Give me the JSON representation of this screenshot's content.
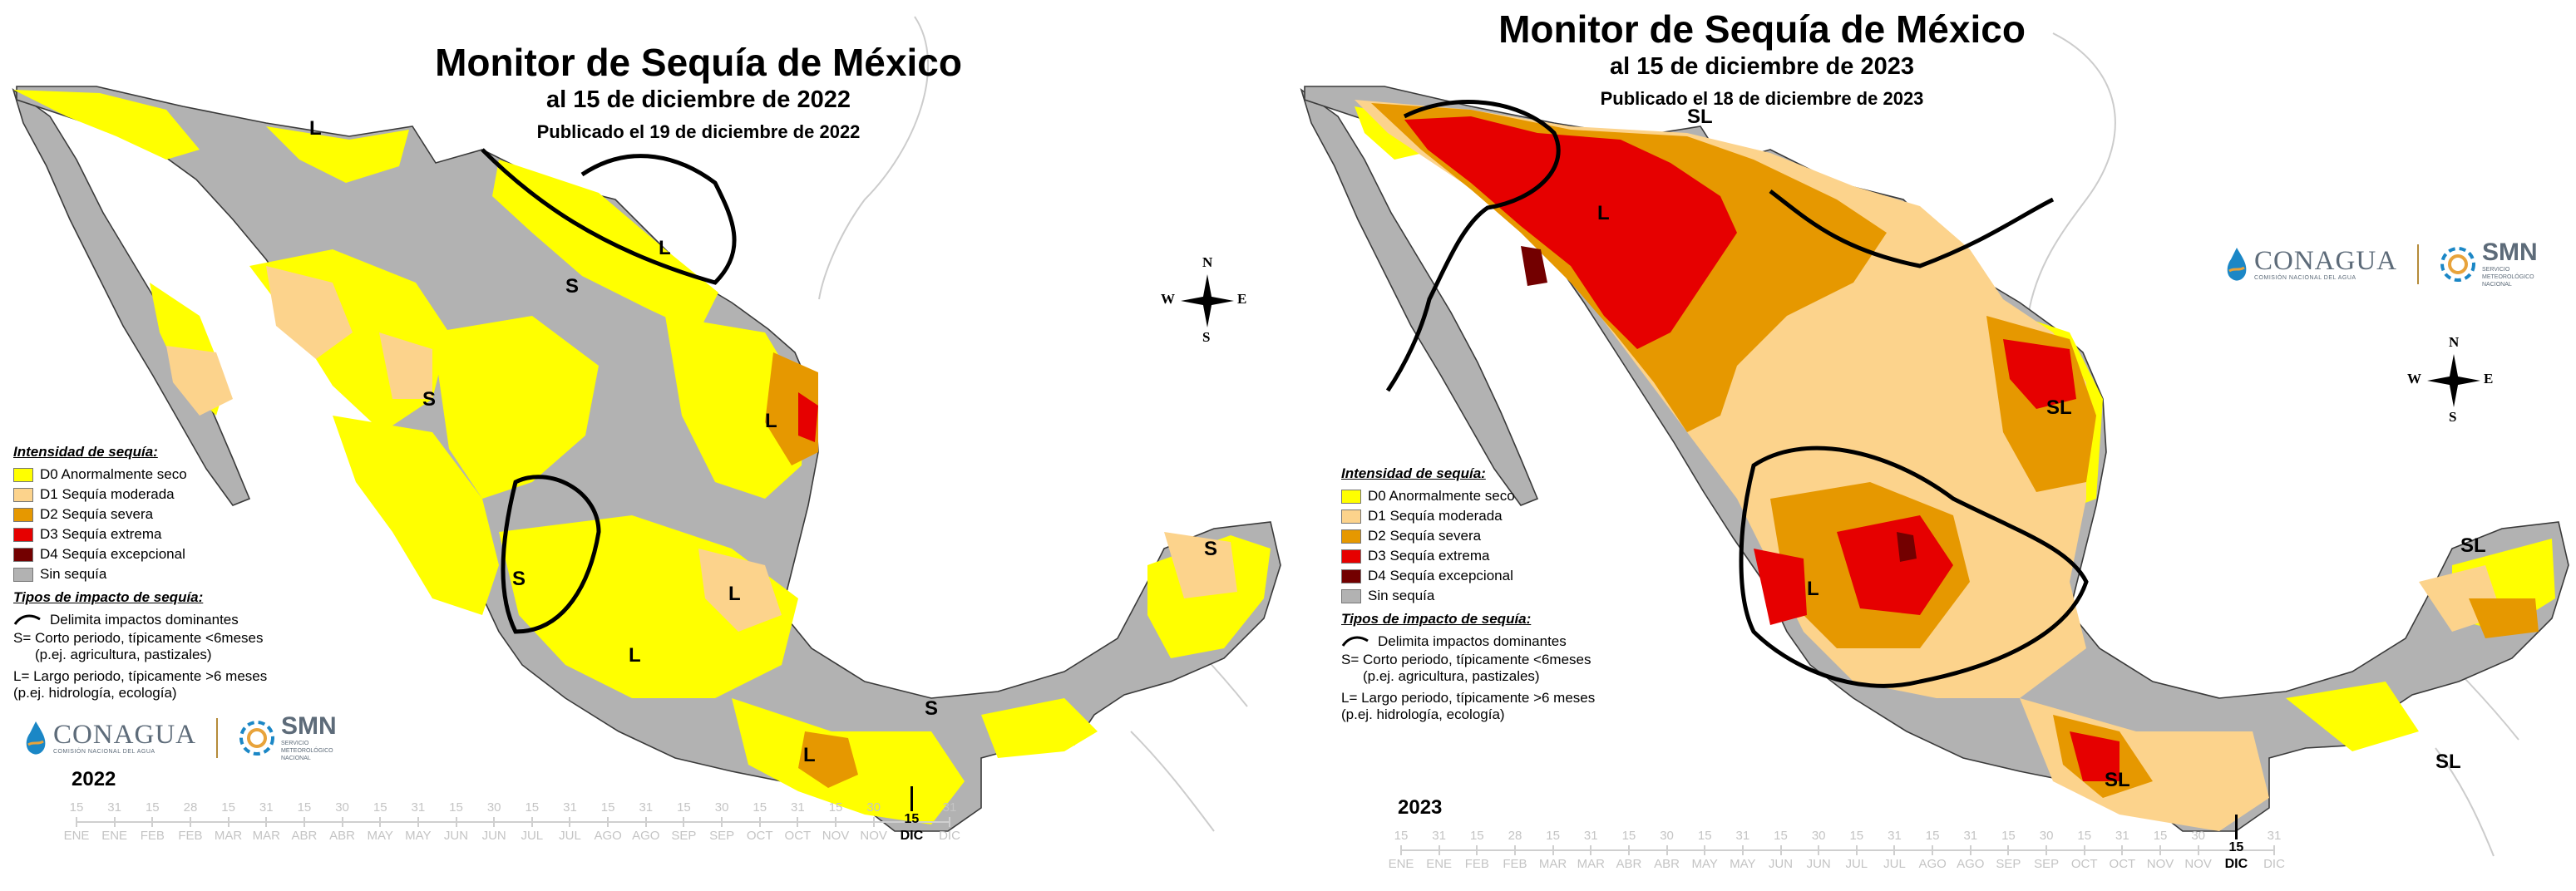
{
  "colors": {
    "d0": "#ffff00",
    "d1": "#fcd38c",
    "d2": "#e69800",
    "d3": "#e60000",
    "d4": "#730000",
    "none": "#b2b2b2",
    "ocean": "#ffffff",
    "border": "#3a3a3a"
  },
  "legend": {
    "intensity_heading": "Intensidad de sequía:",
    "items": [
      {
        "code": "d0",
        "label": "D0 Anormalmente seco"
      },
      {
        "code": "d1",
        "label": "D1 Sequía moderada"
      },
      {
        "code": "d2",
        "label": "D2 Sequía severa"
      },
      {
        "code": "d3",
        "label": "D3 Sequía extrema"
      },
      {
        "code": "d4",
        "label": "D4 Sequía excepcional"
      },
      {
        "code": "none",
        "label": "Sin sequía"
      }
    ],
    "impact_heading": "Tipos de impacto de sequía:",
    "impact_line": "Delimita impactos dominantes",
    "short_1": "S= Corto periodo, típicamente <6meses",
    "short_2": "(p.ej. agricultura, pastizales)",
    "long_1": "L= Largo periodo, típicamente >6 meses",
    "long_2": "(p.ej. hidrología, ecología)"
  },
  "logos": {
    "conagua": "CONAGUA",
    "conagua_tag": "COMISIÓN NACIONAL DEL AGUA",
    "smn": "SMN",
    "smn_tag_1": "SERVICIO",
    "smn_tag_2": "METEOROLÓGICO",
    "smn_tag_3": "NACIONAL"
  },
  "compass": {
    "n": "N",
    "s": "S",
    "e": "E",
    "w": "W"
  },
  "timeline": {
    "ticks": [
      {
        "n": "15",
        "m": "ENE"
      },
      {
        "n": "31",
        "m": "ENE"
      },
      {
        "n": "15",
        "m": "FEB"
      },
      {
        "n": "28",
        "m": "FEB"
      },
      {
        "n": "15",
        "m": "MAR"
      },
      {
        "n": "31",
        "m": "MAR"
      },
      {
        "n": "15",
        "m": "ABR"
      },
      {
        "n": "30",
        "m": "ABR"
      },
      {
        "n": "15",
        "m": "MAY"
      },
      {
        "n": "31",
        "m": "MAY"
      },
      {
        "n": "15",
        "m": "JUN"
      },
      {
        "n": "30",
        "m": "JUN"
      },
      {
        "n": "15",
        "m": "JUL"
      },
      {
        "n": "31",
        "m": "JUL"
      },
      {
        "n": "15",
        "m": "AGO"
      },
      {
        "n": "31",
        "m": "AGO"
      },
      {
        "n": "15",
        "m": "SEP"
      },
      {
        "n": "30",
        "m": "SEP"
      },
      {
        "n": "15",
        "m": "OCT"
      },
      {
        "n": "31",
        "m": "OCT"
      },
      {
        "n": "15",
        "m": "NOV"
      },
      {
        "n": "30",
        "m": "NOV"
      },
      {
        "n": "15",
        "m": "DIC"
      },
      {
        "n": "31",
        "m": "DIC"
      }
    ],
    "current_index": 22
  },
  "maps": [
    {
      "year": "2022",
      "title": "Monitor de Sequía de México",
      "subtitle": "al 15 de diciembre de 2022",
      "published": "Publicado el 19 de diciembre de 2022",
      "impact_labels": [
        "L",
        "L",
        "S",
        "S",
        "L",
        "S",
        "L",
        "L",
        "L",
        "S",
        "S"
      ]
    },
    {
      "year": "2023",
      "title": "Monitor de Sequía de México",
      "subtitle": "al 15 de diciembre de 2023",
      "published": "Publicado el 18 de diciembre de 2023",
      "impact_labels": [
        "SL",
        "L",
        "SL",
        "L",
        "SL",
        "SL",
        "SL"
      ]
    }
  ]
}
